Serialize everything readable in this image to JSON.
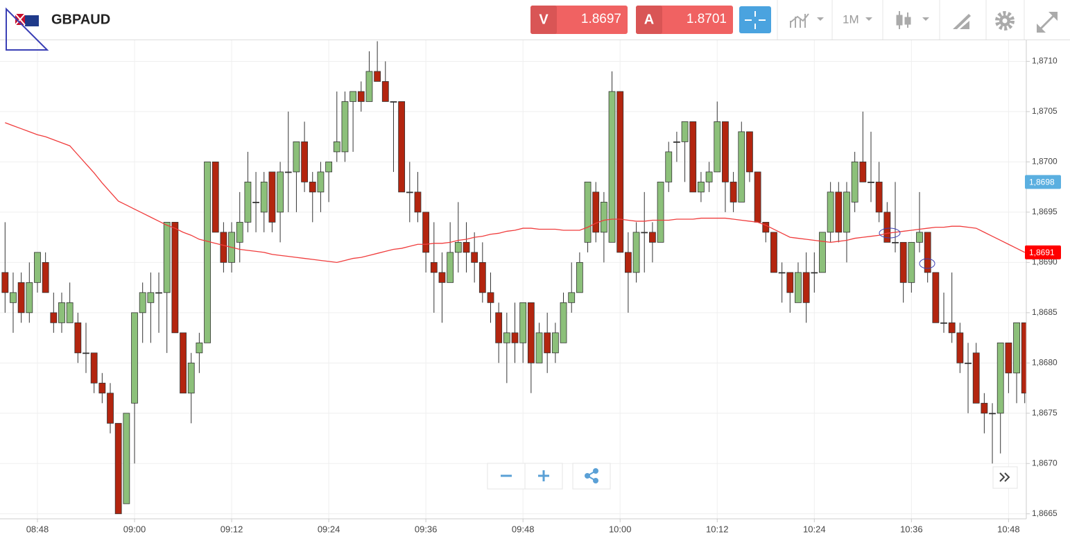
{
  "header": {
    "symbol": "GBPAUD",
    "sell": {
      "label": "V",
      "price": "1.8697"
    },
    "buy": {
      "label": "A",
      "price": "1.8701"
    },
    "timeframe": "1M"
  },
  "chart_data": {
    "type": "candlestick",
    "categories": [
      null,
      null,
      null,
      null,
      "08:48",
      null,
      null,
      null,
      null,
      null,
      null,
      null,
      null,
      null,
      null,
      null,
      "09:00",
      null,
      null,
      null,
      null,
      null,
      null,
      null,
      null,
      null,
      null,
      null,
      "09:12",
      null,
      null,
      null,
      null,
      null,
      null,
      null,
      null,
      null,
      null,
      null,
      "09:24",
      null,
      null,
      null,
      null,
      null,
      null,
      null,
      null,
      null,
      null,
      null,
      "09:36",
      null,
      null,
      null,
      null,
      null,
      null,
      null,
      null,
      null,
      null,
      null,
      "09:48",
      null,
      null,
      null,
      null,
      null,
      null,
      null,
      null,
      null,
      null,
      null,
      "10:00",
      null,
      null,
      null,
      null,
      null,
      null,
      null,
      null,
      null,
      null,
      null,
      "10:12",
      null,
      null,
      null,
      null,
      null,
      null,
      null,
      null,
      null,
      null,
      null,
      "10:24",
      null,
      null,
      null,
      null,
      null,
      null,
      null,
      null,
      null,
      null,
      null,
      "10:36",
      null,
      null,
      null,
      null,
      null,
      null,
      null,
      null,
      null,
      null,
      null,
      "10:48",
      null,
      null
    ],
    "open": [
      1.8689,
      1.8686,
      1.8688,
      1.8685,
      1.8688,
      1.869,
      1.8685,
      1.8684,
      1.8684,
      1.8684,
      1.8681,
      1.8681,
      1.8678,
      1.8677,
      1.8674,
      1.8666,
      1.8676,
      1.8685,
      1.8686,
      1.8687,
      1.8687,
      1.8694,
      1.8683,
      1.8677,
      1.8681,
      1.8682,
      1.87,
      1.8693,
      1.869,
      1.8692,
      1.8694,
      1.8696,
      1.8695,
      1.8699,
      1.8695,
      1.8699,
      1.8699,
      1.8702,
      1.8698,
      1.8697,
      1.8699,
      1.8701,
      1.8701,
      1.8706,
      1.8707,
      1.8706,
      1.8709,
      1.8708,
      1.8706,
      1.8706,
      1.8697,
      1.8697,
      1.8695,
      1.869,
      1.8689,
      1.8688,
      1.8691,
      1.8692,
      1.8691,
      1.869,
      1.8687,
      1.8685,
      1.8682,
      1.8683,
      1.8682,
      1.8686,
      1.868,
      1.8683,
      1.8681,
      1.8682,
      1.8686,
      1.8687,
      1.8692,
      1.8697,
      1.8693,
      1.8692,
      1.8707,
      1.8691,
      1.8689,
      1.8693,
      1.8693,
      1.8692,
      1.8698,
      1.8702,
      1.8702,
      1.8704,
      1.8697,
      1.8698,
      1.8699,
      1.8704,
      1.8698,
      1.8696,
      1.8703,
      1.8699,
      1.8694,
      1.8693,
      1.8689,
      1.8689,
      1.8686,
      1.8689,
      1.8689,
      1.8689,
      1.8693,
      1.8697,
      1.8693,
      1.8696,
      1.87,
      1.8698,
      1.8698,
      1.8695,
      1.8692,
      1.8692,
      1.8688,
      1.8692,
      1.8693,
      1.8689,
      1.8684,
      1.8684,
      1.8683,
      1.868,
      1.8681,
      1.8676,
      1.8675,
      1.8675,
      1.8682,
      1.8679,
      1.8684
    ],
    "high": [
      1.8694,
      1.8689,
      1.8689,
      1.869,
      1.8691,
      1.8691,
      1.8687,
      1.8687,
      1.8688,
      1.8685,
      1.8684,
      1.8681,
      1.8679,
      1.8678,
      1.8674,
      1.8675,
      1.8685,
      1.8688,
      1.8689,
      1.8689,
      1.8694,
      1.8694,
      1.8683,
      1.8681,
      1.8683,
      1.87,
      1.87,
      1.8694,
      1.8694,
      1.8697,
      1.8701,
      1.8699,
      1.8699,
      1.8699,
      1.87,
      1.8705,
      1.8702,
      1.8704,
      1.8699,
      1.87,
      1.87,
      1.8707,
      1.8707,
      1.8707,
      1.8708,
      1.8711,
      1.8712,
      1.871,
      1.8706,
      1.8706,
      1.87,
      1.8699,
      1.8695,
      1.8694,
      1.8691,
      1.8694,
      1.8696,
      1.8694,
      1.8693,
      1.8692,
      1.8689,
      1.8686,
      1.8685,
      1.8686,
      1.8686,
      1.8686,
      1.8684,
      1.8685,
      1.8684,
      1.8687,
      1.869,
      1.8691,
      1.8698,
      1.8698,
      1.8697,
      1.8709,
      1.8707,
      1.8693,
      1.8694,
      1.8697,
      1.8694,
      1.8698,
      1.8702,
      1.8703,
      1.8704,
      1.8704,
      1.8699,
      1.87,
      1.8706,
      1.8704,
      1.8699,
      1.8704,
      1.8703,
      1.8699,
      1.8694,
      1.8693,
      1.869,
      1.8689,
      1.869,
      1.8691,
      1.8691,
      1.8693,
      1.8698,
      1.8698,
      1.8698,
      1.8701,
      1.8705,
      1.8703,
      1.87,
      1.8696,
      1.8698,
      1.8692,
      1.8692,
      1.8697,
      1.8693,
      1.8689,
      1.8687,
      1.8689,
      1.8684,
      1.8682,
      1.8682,
      1.8677,
      1.8676,
      1.8682,
      1.8682,
      1.8684,
      1.8684
    ],
    "low": [
      1.8685,
      1.8683,
      1.8684,
      1.8684,
      1.8687,
      1.8687,
      1.8683,
      1.8683,
      1.8684,
      1.868,
      1.8679,
      1.8677,
      1.8676,
      1.8673,
      1.8665,
      1.8666,
      1.867,
      1.8682,
      1.8682,
      1.8683,
      1.8681,
      1.8683,
      1.8677,
      1.8674,
      1.8679,
      1.8682,
      1.8693,
      1.8689,
      1.8689,
      1.869,
      1.8693,
      1.8693,
      1.8693,
      1.8693,
      1.8692,
      1.8695,
      1.8695,
      1.8697,
      1.8694,
      1.8695,
      1.8696,
      1.87,
      1.87,
      1.8701,
      1.8705,
      1.8706,
      1.8708,
      1.8706,
      1.8699,
      1.8697,
      1.8694,
      1.8694,
      1.8689,
      1.8685,
      1.8684,
      1.8688,
      1.8689,
      1.8689,
      1.8688,
      1.8686,
      1.8684,
      1.868,
      1.8678,
      1.868,
      1.868,
      1.8677,
      1.868,
      1.8679,
      1.868,
      1.8682,
      1.8685,
      1.8687,
      1.8691,
      1.8692,
      1.869,
      1.8692,
      1.8691,
      1.8685,
      1.8688,
      1.8689,
      1.869,
      1.8692,
      1.8697,
      1.87,
      1.8698,
      1.8697,
      1.8696,
      1.8697,
      1.8699,
      1.8695,
      1.8695,
      1.8696,
      1.8698,
      1.8694,
      1.8692,
      1.8689,
      1.8686,
      1.8685,
      1.8686,
      1.8684,
      1.8687,
      1.8689,
      1.8692,
      1.8692,
      1.869,
      1.8695,
      1.8698,
      1.8696,
      1.8694,
      1.8692,
      1.8691,
      1.8686,
      1.8687,
      1.8691,
      1.8688,
      1.8684,
      1.8683,
      1.8682,
      1.8679,
      1.8675,
      1.8676,
      1.8673,
      1.867,
      1.8671,
      1.8677,
      1.8676,
      1.8676
    ],
    "close": [
      1.8687,
      1.8687,
      1.8685,
      1.8688,
      1.8691,
      1.8687,
      1.8684,
      1.8686,
      1.8686,
      1.8681,
      1.8681,
      1.8678,
      1.8677,
      1.8674,
      1.8665,
      1.8675,
      1.8685,
      1.8687,
      1.8687,
      1.8687,
      1.8694,
      1.8683,
      1.8677,
      1.868,
      1.8682,
      1.87,
      1.8693,
      1.869,
      1.8693,
      1.8694,
      1.8698,
      1.8696,
      1.8698,
      1.8694,
      1.8699,
      1.8699,
      1.8702,
      1.8698,
      1.8697,
      1.8699,
      1.87,
      1.8702,
      1.8706,
      1.8707,
      1.8706,
      1.8709,
      1.8708,
      1.8706,
      1.8706,
      1.8697,
      1.8697,
      1.8695,
      1.8691,
      1.8689,
      1.8688,
      1.8691,
      1.8692,
      1.8691,
      1.869,
      1.8687,
      1.8686,
      1.8682,
      1.8683,
      1.8682,
      1.8686,
      1.868,
      1.8683,
      1.8681,
      1.8683,
      1.8686,
      1.8687,
      1.869,
      1.8698,
      1.8693,
      1.8696,
      1.8707,
      1.8691,
      1.8689,
      1.8693,
      1.8693,
      1.8692,
      1.8698,
      1.8701,
      1.8702,
      1.8704,
      1.8697,
      1.8698,
      1.8699,
      1.8704,
      1.8698,
      1.8696,
      1.8703,
      1.8699,
      1.8694,
      1.8693,
      1.8689,
      1.8689,
      1.8687,
      1.8689,
      1.8686,
      1.8689,
      1.8693,
      1.8697,
      1.8693,
      1.8697,
      1.87,
      1.8698,
      1.8698,
      1.8695,
      1.8692,
      1.8692,
      1.8688,
      1.8692,
      1.8693,
      1.8689,
      1.8684,
      1.8684,
      1.8683,
      1.868,
      1.868,
      1.8676,
      1.8675,
      1.8675,
      1.8682,
      1.8679,
      1.8684,
      1.8677
    ],
    "up_color": "#8cc07a",
    "down_color": "#b3250f",
    "doji_color": "#333333",
    "moving_average": {
      "color": "#f03c3c",
      "values": [
        1.87039,
        1.87036,
        1.87033,
        1.8703,
        1.87027,
        1.87025,
        1.87022,
        1.87019,
        1.87016,
        1.87007,
        1.86998,
        1.86989,
        1.86979,
        1.8697,
        1.86961,
        1.86957,
        1.86953,
        1.86949,
        1.86945,
        1.86941,
        1.86937,
        1.86934,
        1.8693,
        1.86927,
        1.86923,
        1.86921,
        1.86919,
        1.86917,
        1.86915,
        1.86913,
        1.86912,
        1.86911,
        1.8691,
        1.86908,
        1.86907,
        1.86906,
        1.86905,
        1.86904,
        1.86903,
        1.86902,
        1.86901,
        1.869,
        1.86902,
        1.86904,
        1.86905,
        1.86907,
        1.86909,
        1.86911,
        1.86913,
        1.86914,
        1.86916,
        1.86918,
        1.86918,
        1.86919,
        1.86919,
        1.8692,
        1.86922,
        1.86923,
        1.86925,
        1.86926,
        1.86928,
        1.86929,
        1.86931,
        1.86932,
        1.86934,
        1.86934,
        1.86933,
        1.86933,
        1.86933,
        1.86932,
        1.86932,
        1.86932,
        1.86935,
        1.86939,
        1.86942,
        1.86943,
        1.86943,
        1.86942,
        1.86941,
        1.86941,
        1.86942,
        1.86942,
        1.86942,
        1.86943,
        1.86943,
        1.86943,
        1.86944,
        1.86944,
        1.86944,
        1.86944,
        1.86943,
        1.86942,
        1.86941,
        1.8694,
        1.86937,
        1.86933,
        1.86929,
        1.86925,
        1.86924,
        1.86923,
        1.86922,
        1.86921,
        1.8692,
        1.86921,
        1.86922,
        1.86924,
        1.86925,
        1.86926,
        1.86927,
        1.86929,
        1.8693,
        1.86931,
        1.86932,
        1.86933,
        1.86934,
        1.86935,
        1.86935,
        1.86936,
        1.86936,
        1.86935,
        1.86934,
        1.8693,
        1.86926,
        1.86922,
        1.86918,
        1.86914,
        1.8691
      ]
    },
    "ylim": [
      1.86645,
      1.87121
    ],
    "yticks": [
      {
        "value": 1.8665,
        "label": "1,8665"
      },
      {
        "value": 1.867,
        "label": "1,8670"
      },
      {
        "value": 1.8675,
        "label": "1,8675"
      },
      {
        "value": 1.868,
        "label": "1,8680"
      },
      {
        "value": 1.8685,
        "label": "1,8685"
      },
      {
        "value": 1.869,
        "label": "1,8690"
      },
      {
        "value": 1.8695,
        "label": "1,8695"
      },
      {
        "value": 1.87,
        "label": "1,8700"
      },
      {
        "value": 1.8705,
        "label": "1,8705"
      },
      {
        "value": 1.871,
        "label": "1,8710"
      }
    ],
    "grid": true,
    "price_tags": [
      {
        "value": 1.8698,
        "label": "1,8698",
        "color": "#5aafe0"
      },
      {
        "value": 1.8691,
        "label": "1,8691",
        "color": "#ff0000"
      }
    ]
  }
}
